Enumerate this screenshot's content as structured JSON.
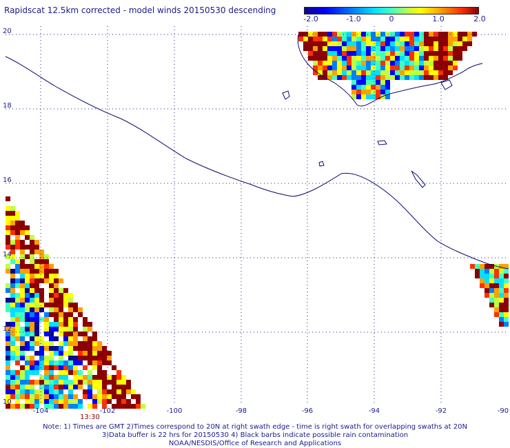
{
  "title": "Rapidscat 12.5km corrected - model winds 20150530 descending",
  "colorbar": {
    "ticks": [
      "-2.0",
      "-1.0",
      "0",
      "1.0",
      "2.0"
    ],
    "colors": [
      "#0a0a8c",
      "#0000ff",
      "#0080ff",
      "#00e0ff",
      "#40ffc0",
      "#c0ff40",
      "#ffff00",
      "#ffa000",
      "#ff3000",
      "#8b0000"
    ]
  },
  "axes": {
    "lat_labels": [
      "20",
      "18",
      "16",
      "14",
      "12",
      "10"
    ],
    "lon_labels": [
      "-104",
      "-102",
      "-100",
      "-98",
      "-96",
      "-94",
      "-92",
      "-90"
    ]
  },
  "swath_time": "13:30",
  "notes": {
    "line1": "Note: 1) Times are GMT 2)Times correspond to 20N at right swath edge - time is right swath for overlapping swaths at 20N",
    "line2": "3)Data buffer is 22 hrs for 20150530 4) Black barbs indicate possible rain contamination",
    "line3": "NOAA/NESDIS/Office of Research and Applications"
  },
  "map_colors": {
    "coastline": "#0a0a6e",
    "grid": "#1a1a8c"
  }
}
